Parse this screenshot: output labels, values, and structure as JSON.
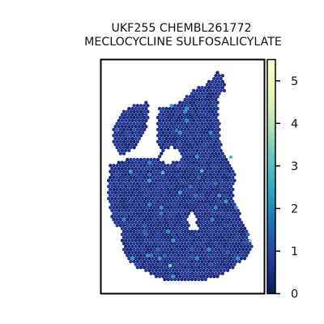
{
  "chart_data": {
    "type": "heatmap",
    "subtype": "spatial hexbin spot map",
    "title_line1": "UKF255 CHEMBL261772",
    "title_line2": "MECLOCYCLINE SULFOSALICYLATE",
    "xlabel": "",
    "ylabel": "",
    "grid": false,
    "colormap": "YlGnBu",
    "colorbar": {
      "range": [
        0,
        5.5
      ],
      "ticks": [
        0,
        1,
        2,
        3,
        4,
        5
      ],
      "tick_labels": [
        "0",
        "1",
        "2",
        "3",
        "4",
        "5"
      ]
    },
    "typical_value_range": [
      0.3,
      1.0
    ],
    "highlighted_spots": [
      {
        "description": "teal spot, right edge",
        "value": 3.0
      },
      {
        "description": "light teal spot near bottom",
        "value": 3.5
      },
      {
        "description": "cyan spots scattered",
        "value": 2.0
      }
    ]
  }
}
